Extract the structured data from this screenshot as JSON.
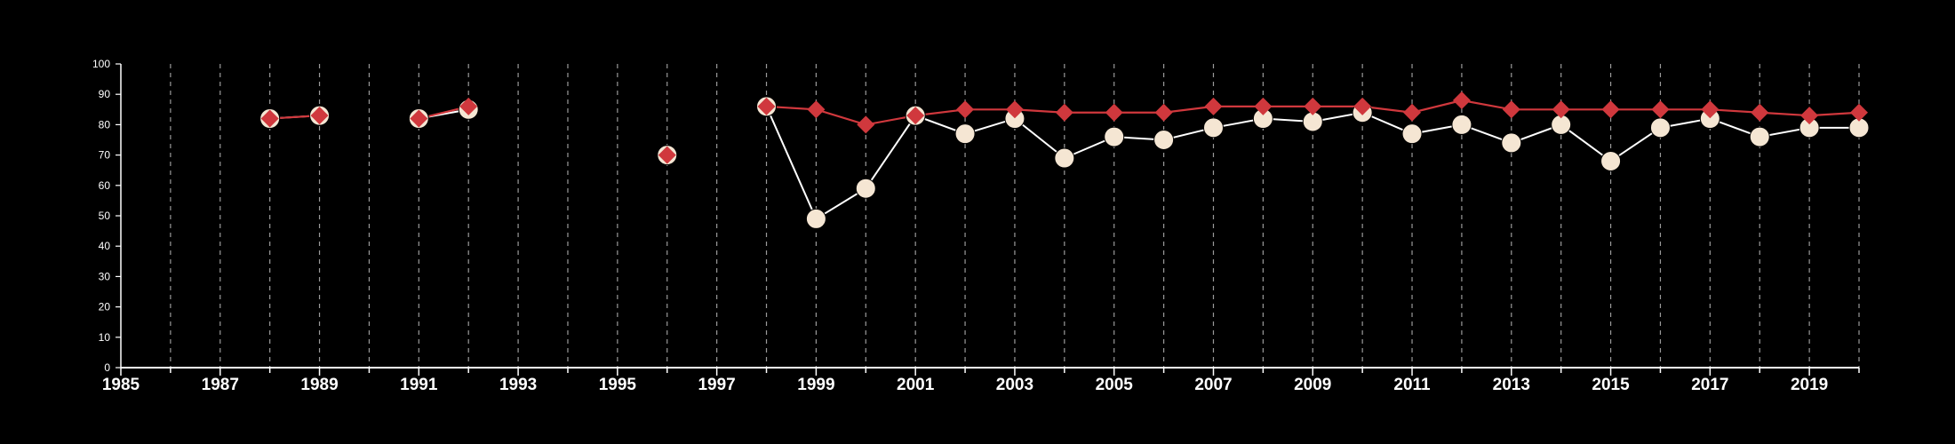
{
  "chart_data": {
    "type": "line",
    "title": "",
    "xlabel": "",
    "ylabel": "",
    "xlim": [
      1985,
      2020
    ],
    "ylim": [
      0,
      100
    ],
    "x_ticks": [
      "1985",
      "1987",
      "1989",
      "1991",
      "1993",
      "1995",
      "1997",
      "1999",
      "2001",
      "2003",
      "2005",
      "2007",
      "2009",
      "2011",
      "2013",
      "2015",
      "2017",
      "2019"
    ],
    "y_ticks": [
      "0",
      "10",
      "20",
      "30",
      "40",
      "50",
      "60",
      "70",
      "80",
      "90",
      "100"
    ],
    "grid": "vertical dashed lines at every year",
    "background_color": "#000000",
    "series": [
      {
        "marker": "circle",
        "color": "#f5e6d3",
        "line_color": "#ffffff",
        "points": [
          [
            1988,
            82
          ],
          [
            1989,
            83
          ],
          [
            1991,
            82
          ],
          [
            1992,
            85
          ],
          [
            1996,
            70
          ],
          [
            1998,
            86
          ],
          [
            1999,
            49
          ],
          [
            2000,
            59
          ],
          [
            2001,
            83
          ],
          [
            2002,
            77
          ],
          [
            2003,
            82
          ],
          [
            2004,
            69
          ],
          [
            2005,
            76
          ],
          [
            2006,
            75
          ],
          [
            2007,
            79
          ],
          [
            2008,
            82
          ],
          [
            2009,
            81
          ],
          [
            2010,
            84
          ],
          [
            2011,
            77
          ],
          [
            2012,
            80
          ],
          [
            2013,
            74
          ],
          [
            2014,
            80
          ],
          [
            2015,
            68
          ],
          [
            2016,
            79
          ],
          [
            2017,
            82
          ],
          [
            2018,
            76
          ],
          [
            2019,
            79
          ],
          [
            2020,
            79
          ]
        ]
      },
      {
        "marker": "diamond",
        "color": "#d0383d",
        "line_color": "#d0383d",
        "points": [
          [
            1988,
            82
          ],
          [
            1989,
            83
          ],
          [
            1991,
            82
          ],
          [
            1992,
            86
          ],
          [
            1996,
            70
          ],
          [
            1998,
            86
          ],
          [
            1999,
            85
          ],
          [
            2000,
            80
          ],
          [
            2001,
            83
          ],
          [
            2002,
            85
          ],
          [
            2003,
            85
          ],
          [
            2004,
            84
          ],
          [
            2005,
            84
          ],
          [
            2006,
            84
          ],
          [
            2007,
            86
          ],
          [
            2008,
            86
          ],
          [
            2009,
            86
          ],
          [
            2010,
            86
          ],
          [
            2011,
            84
          ],
          [
            2012,
            88
          ],
          [
            2013,
            85
          ],
          [
            2014,
            85
          ],
          [
            2015,
            85
          ],
          [
            2016,
            85
          ],
          [
            2017,
            85
          ],
          [
            2018,
            84
          ],
          [
            2019,
            83
          ],
          [
            2020,
            84
          ]
        ]
      }
    ]
  }
}
